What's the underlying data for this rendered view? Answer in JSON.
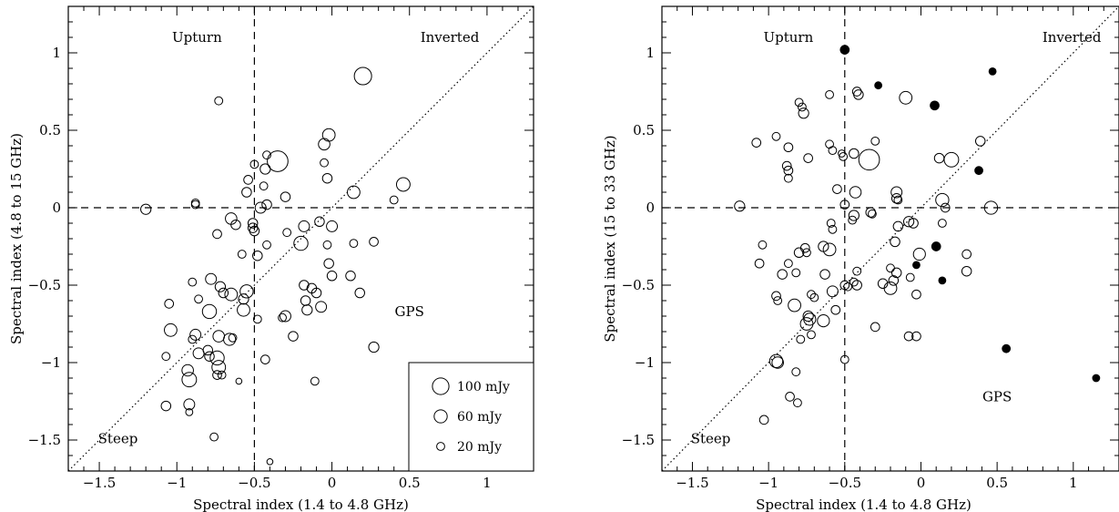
{
  "chart_data": [
    {
      "type": "scatter",
      "xlabel": "Spectral index (1.4 to 4.8 GHz)",
      "ylabel": "Spectral index (4.8 to 15 GHz)",
      "xlim": [
        -1.7,
        1.3
      ],
      "ylim": [
        -1.7,
        1.3
      ],
      "xticks": [
        -1.5,
        -1,
        -0.5,
        0,
        0.5,
        1
      ],
      "yticks": [
        -1.5,
        -1,
        -0.5,
        0,
        0.5,
        1
      ],
      "tick_labels": [
        "−1.5",
        "−1",
        "−0.5",
        "0",
        "0.5",
        "1"
      ],
      "dividers": {
        "x": -0.5,
        "y": 0
      },
      "diagonal": true,
      "regions": [
        "Upturn",
        "Inverted",
        "Steep",
        "GPS"
      ],
      "legend": {
        "placement": "bottom-right",
        "entries": [
          {
            "label": "100 mJy",
            "flux": 100
          },
          {
            "label": "60 mJy",
            "flux": 60
          },
          {
            "label": "20 mJy",
            "flux": 20
          }
        ]
      },
      "points": [
        {
          "x": 0.2,
          "y": 0.85,
          "flux": 110
        },
        {
          "x": -0.73,
          "y": 0.69,
          "flux": 20
        },
        {
          "x": -0.02,
          "y": 0.47,
          "flux": 55
        },
        {
          "x": -0.05,
          "y": 0.41,
          "flux": 45
        },
        {
          "x": -0.35,
          "y": 0.3,
          "flux": 160
        },
        {
          "x": -0.42,
          "y": 0.34,
          "flux": 20
        },
        {
          "x": -0.43,
          "y": 0.25,
          "flux": 35
        },
        {
          "x": -0.5,
          "y": 0.28,
          "flux": 20
        },
        {
          "x": -0.05,
          "y": 0.29,
          "flux": 20
        },
        {
          "x": -0.03,
          "y": 0.19,
          "flux": 30
        },
        {
          "x": 0.46,
          "y": 0.15,
          "flux": 65
        },
        {
          "x": 0.14,
          "y": 0.1,
          "flux": 55
        },
        {
          "x": -0.54,
          "y": 0.18,
          "flux": 25
        },
        {
          "x": -0.55,
          "y": 0.1,
          "flux": 30
        },
        {
          "x": -0.44,
          "y": 0.14,
          "flux": 20
        },
        {
          "x": -0.3,
          "y": 0.07,
          "flux": 30
        },
        {
          "x": -0.42,
          "y": 0.02,
          "flux": 30
        },
        {
          "x": -0.46,
          "y": 0.0,
          "flux": 40
        },
        {
          "x": 0.4,
          "y": 0.05,
          "flux": 20
        },
        {
          "x": -0.88,
          "y": 0.02,
          "flux": 20
        },
        {
          "x": -1.2,
          "y": -0.01,
          "flux": 35
        },
        {
          "x": -0.88,
          "y": 0.03,
          "flux": 20
        },
        {
          "x": -0.65,
          "y": -0.07,
          "flux": 45
        },
        {
          "x": -0.62,
          "y": -0.11,
          "flux": 30
        },
        {
          "x": -0.51,
          "y": -0.1,
          "flux": 30
        },
        {
          "x": -0.51,
          "y": -0.13,
          "flux": 30
        },
        {
          "x": -0.5,
          "y": -0.15,
          "flux": 30
        },
        {
          "x": -0.08,
          "y": -0.09,
          "flux": 30
        },
        {
          "x": 0.0,
          "y": -0.12,
          "flux": 40
        },
        {
          "x": -0.18,
          "y": -0.12,
          "flux": 40
        },
        {
          "x": -0.2,
          "y": -0.23,
          "flux": 70
        },
        {
          "x": -0.74,
          "y": -0.17,
          "flux": 25
        },
        {
          "x": -0.42,
          "y": -0.24,
          "flux": 20
        },
        {
          "x": -0.29,
          "y": -0.16,
          "flux": 20
        },
        {
          "x": -0.03,
          "y": -0.24,
          "flux": 20
        },
        {
          "x": 0.14,
          "y": -0.23,
          "flux": 20
        },
        {
          "x": 0.27,
          "y": -0.22,
          "flux": 25
        },
        {
          "x": -0.58,
          "y": -0.3,
          "flux": 20
        },
        {
          "x": -0.48,
          "y": -0.31,
          "flux": 30
        },
        {
          "x": -0.02,
          "y": -0.36,
          "flux": 30
        },
        {
          "x": 0.0,
          "y": -0.44,
          "flux": 30
        },
        {
          "x": 0.12,
          "y": -0.44,
          "flux": 30
        },
        {
          "x": -0.78,
          "y": -0.46,
          "flux": 40
        },
        {
          "x": -0.9,
          "y": -0.48,
          "flux": 20
        },
        {
          "x": -0.72,
          "y": -0.51,
          "flux": 35
        },
        {
          "x": -0.7,
          "y": -0.55,
          "flux": 30
        },
        {
          "x": -0.65,
          "y": -0.56,
          "flux": 55
        },
        {
          "x": -0.55,
          "y": -0.54,
          "flux": 60
        },
        {
          "x": -0.57,
          "y": -0.59,
          "flux": 35
        },
        {
          "x": -0.57,
          "y": -0.66,
          "flux": 55
        },
        {
          "x": -0.18,
          "y": -0.5,
          "flux": 30
        },
        {
          "x": -0.13,
          "y": -0.52,
          "flux": 30
        },
        {
          "x": -0.1,
          "y": -0.55,
          "flux": 30
        },
        {
          "x": 0.18,
          "y": -0.55,
          "flux": 30
        },
        {
          "x": -0.17,
          "y": -0.6,
          "flux": 30
        },
        {
          "x": -0.16,
          "y": -0.66,
          "flux": 35
        },
        {
          "x": -0.07,
          "y": -0.64,
          "flux": 40
        },
        {
          "x": -1.05,
          "y": -0.62,
          "flux": 25
        },
        {
          "x": -0.86,
          "y": -0.59,
          "flux": 20
        },
        {
          "x": -0.79,
          "y": -0.67,
          "flux": 70
        },
        {
          "x": -0.3,
          "y": -0.7,
          "flux": 40
        },
        {
          "x": -0.32,
          "y": -0.71,
          "flux": 20
        },
        {
          "x": -0.48,
          "y": -0.72,
          "flux": 20
        },
        {
          "x": -1.04,
          "y": -0.79,
          "flux": 55
        },
        {
          "x": -0.88,
          "y": -0.82,
          "flux": 40
        },
        {
          "x": -0.9,
          "y": -0.85,
          "flux": 20
        },
        {
          "x": -0.73,
          "y": -0.83,
          "flux": 45
        },
        {
          "x": -0.66,
          "y": -0.85,
          "flux": 50
        },
        {
          "x": -0.64,
          "y": -0.84,
          "flux": 20
        },
        {
          "x": -0.25,
          "y": -0.83,
          "flux": 30
        },
        {
          "x": -0.8,
          "y": -0.92,
          "flux": 30
        },
        {
          "x": -0.79,
          "y": -0.96,
          "flux": 30
        },
        {
          "x": -0.86,
          "y": -0.94,
          "flux": 40
        },
        {
          "x": -0.74,
          "y": -0.97,
          "flux": 70
        },
        {
          "x": -0.73,
          "y": -1.03,
          "flux": 65
        },
        {
          "x": -0.74,
          "y": -1.08,
          "flux": 25
        },
        {
          "x": -0.71,
          "y": -1.08,
          "flux": 20
        },
        {
          "x": 0.27,
          "y": -0.9,
          "flux": 35
        },
        {
          "x": -0.43,
          "y": -0.98,
          "flux": 25
        },
        {
          "x": -0.93,
          "y": -1.05,
          "flux": 45
        },
        {
          "x": -0.92,
          "y": -1.11,
          "flux": 75
        },
        {
          "x": -1.07,
          "y": -0.96,
          "flux": 20
        },
        {
          "x": -1.07,
          "y": -1.28,
          "flux": 30
        },
        {
          "x": -0.92,
          "y": -1.27,
          "flux": 40
        },
        {
          "x": -0.92,
          "y": -1.32,
          "flux": 15
        },
        {
          "x": -0.76,
          "y": -1.48,
          "flux": 20
        },
        {
          "x": -0.6,
          "y": -1.12,
          "flux": 10
        },
        {
          "x": -0.11,
          "y": -1.12,
          "flux": 20
        },
        {
          "x": -0.4,
          "y": -1.64,
          "flux": 10
        }
      ]
    },
    {
      "type": "scatter",
      "xlabel": "Spectral index (1.4 to 4.8 GHz)",
      "ylabel": "Spectral index (15 to 33 GHz)",
      "xlim": [
        -1.7,
        1.3
      ],
      "ylim": [
        -1.7,
        1.3
      ],
      "xticks": [
        -1.5,
        -1,
        -0.5,
        0,
        0.5,
        1
      ],
      "yticks": [
        -1.5,
        -1,
        -0.5,
        0,
        0.5,
        1
      ],
      "tick_labels": [
        "−1.5",
        "−1",
        "−0.5",
        "0",
        "0.5",
        "1"
      ],
      "dividers": {
        "x": -0.5,
        "y": 0
      },
      "diagonal": true,
      "regions": [
        "Upturn",
        "Inverted",
        "Steep",
        "GPS"
      ],
      "points": [
        {
          "x": -0.5,
          "y": 1.02,
          "flux": 25,
          "filled": true
        },
        {
          "x": 0.47,
          "y": 0.88,
          "flux": 15,
          "filled": true
        },
        {
          "x": -0.28,
          "y": 0.79,
          "flux": 15,
          "filled": true
        },
        {
          "x": -0.42,
          "y": 0.75,
          "flux": 25
        },
        {
          "x": -0.41,
          "y": 0.73,
          "flux": 30
        },
        {
          "x": -0.1,
          "y": 0.71,
          "flux": 55
        },
        {
          "x": 0.09,
          "y": 0.66,
          "flux": 25,
          "filled": true
        },
        {
          "x": -0.6,
          "y": 0.73,
          "flux": 20
        },
        {
          "x": -0.8,
          "y": 0.68,
          "flux": 20
        },
        {
          "x": -0.78,
          "y": 0.65,
          "flux": 20
        },
        {
          "x": -0.77,
          "y": 0.61,
          "flux": 35
        },
        {
          "x": -0.95,
          "y": 0.46,
          "flux": 20
        },
        {
          "x": -1.08,
          "y": 0.42,
          "flux": 25
        },
        {
          "x": -0.87,
          "y": 0.39,
          "flux": 25
        },
        {
          "x": -0.58,
          "y": 0.37,
          "flux": 20
        },
        {
          "x": -0.6,
          "y": 0.41,
          "flux": 20
        },
        {
          "x": -0.44,
          "y": 0.35,
          "flux": 30
        },
        {
          "x": -0.3,
          "y": 0.43,
          "flux": 20
        },
        {
          "x": -0.34,
          "y": 0.31,
          "flux": 160
        },
        {
          "x": -0.52,
          "y": 0.35,
          "flux": 15
        },
        {
          "x": -0.51,
          "y": 0.33,
          "flux": 20
        },
        {
          "x": 0.12,
          "y": 0.32,
          "flux": 30
        },
        {
          "x": 0.2,
          "y": 0.31,
          "flux": 75
        },
        {
          "x": 0.39,
          "y": 0.43,
          "flux": 30
        },
        {
          "x": 0.38,
          "y": 0.24,
          "flux": 20,
          "filled": true
        },
        {
          "x": -0.88,
          "y": 0.27,
          "flux": 25
        },
        {
          "x": -0.87,
          "y": 0.24,
          "flux": 25
        },
        {
          "x": -0.87,
          "y": 0.19,
          "flux": 20
        },
        {
          "x": -0.74,
          "y": 0.32,
          "flux": 25
        },
        {
          "x": -0.55,
          "y": 0.12,
          "flux": 25
        },
        {
          "x": -0.43,
          "y": 0.1,
          "flux": 45
        },
        {
          "x": -0.16,
          "y": 0.06,
          "flux": 30
        },
        {
          "x": -0.16,
          "y": 0.1,
          "flux": 40
        },
        {
          "x": -0.15,
          "y": 0.05,
          "flux": 20
        },
        {
          "x": 0.14,
          "y": 0.05,
          "flux": 60
        },
        {
          "x": -1.19,
          "y": 0.01,
          "flux": 35
        },
        {
          "x": -0.5,
          "y": 0.02,
          "flux": 25
        },
        {
          "x": -0.33,
          "y": -0.03,
          "flux": 30
        },
        {
          "x": -0.32,
          "y": -0.04,
          "flux": 20
        },
        {
          "x": -0.44,
          "y": -0.05,
          "flux": 35
        },
        {
          "x": -0.45,
          "y": -0.08,
          "flux": 20
        },
        {
          "x": -0.08,
          "y": -0.09,
          "flux": 35
        },
        {
          "x": -0.05,
          "y": -0.1,
          "flux": 30
        },
        {
          "x": 0.16,
          "y": 0.0,
          "flux": 25
        },
        {
          "x": 0.46,
          "y": 0.0,
          "flux": 60
        },
        {
          "x": -0.59,
          "y": -0.1,
          "flux": 20
        },
        {
          "x": -0.58,
          "y": -0.14,
          "flux": 20
        },
        {
          "x": -0.15,
          "y": -0.12,
          "flux": 30
        },
        {
          "x": 0.14,
          "y": -0.1,
          "flux": 20
        },
        {
          "x": -0.64,
          "y": -0.25,
          "flux": 35
        },
        {
          "x": -0.6,
          "y": -0.27,
          "flux": 55
        },
        {
          "x": -0.76,
          "y": -0.26,
          "flux": 25
        },
        {
          "x": -0.75,
          "y": -0.29,
          "flux": 20
        },
        {
          "x": -0.8,
          "y": -0.29,
          "flux": 30
        },
        {
          "x": -1.04,
          "y": -0.24,
          "flux": 20
        },
        {
          "x": -1.06,
          "y": -0.36,
          "flux": 25
        },
        {
          "x": -0.87,
          "y": -0.36,
          "flux": 20
        },
        {
          "x": -0.17,
          "y": -0.22,
          "flux": 30
        },
        {
          "x": 0.1,
          "y": -0.25,
          "flux": 25,
          "filled": true
        },
        {
          "x": -0.01,
          "y": -0.3,
          "flux": 50
        },
        {
          "x": 0.3,
          "y": -0.3,
          "flux": 25
        },
        {
          "x": -0.03,
          "y": -0.37,
          "flux": 15,
          "filled": true
        },
        {
          "x": -0.2,
          "y": -0.39,
          "flux": 20
        },
        {
          "x": -0.42,
          "y": -0.41,
          "flux": 20
        },
        {
          "x": -0.82,
          "y": -0.42,
          "flux": 20
        },
        {
          "x": -0.91,
          "y": -0.43,
          "flux": 30
        },
        {
          "x": -0.63,
          "y": -0.43,
          "flux": 30
        },
        {
          "x": -0.16,
          "y": -0.42,
          "flux": 30
        },
        {
          "x": 0.3,
          "y": -0.41,
          "flux": 30
        },
        {
          "x": -0.07,
          "y": -0.45,
          "flux": 20
        },
        {
          "x": -0.18,
          "y": -0.47,
          "flux": 30
        },
        {
          "x": 0.14,
          "y": -0.47,
          "flux": 15,
          "filled": true
        },
        {
          "x": -0.42,
          "y": -0.5,
          "flux": 30
        },
        {
          "x": -0.44,
          "y": -0.48,
          "flux": 20
        },
        {
          "x": -0.5,
          "y": -0.5,
          "flux": 25
        },
        {
          "x": -0.48,
          "y": -0.51,
          "flux": 20
        },
        {
          "x": -0.2,
          "y": -0.52,
          "flux": 55
        },
        {
          "x": -0.25,
          "y": -0.49,
          "flux": 30
        },
        {
          "x": -0.58,
          "y": -0.54,
          "flux": 40
        },
        {
          "x": -0.72,
          "y": -0.56,
          "flux": 20
        },
        {
          "x": -0.7,
          "y": -0.58,
          "flux": 20
        },
        {
          "x": -0.03,
          "y": -0.56,
          "flux": 25
        },
        {
          "x": -0.95,
          "y": -0.57,
          "flux": 25
        },
        {
          "x": -0.94,
          "y": -0.6,
          "flux": 20
        },
        {
          "x": -0.83,
          "y": -0.63,
          "flux": 55
        },
        {
          "x": -0.56,
          "y": -0.66,
          "flux": 25
        },
        {
          "x": -0.74,
          "y": -0.7,
          "flux": 35
        },
        {
          "x": -0.73,
          "y": -0.72,
          "flux": 50
        },
        {
          "x": -0.64,
          "y": -0.73,
          "flux": 50
        },
        {
          "x": -0.75,
          "y": -0.75,
          "flux": 55
        },
        {
          "x": -0.3,
          "y": -0.77,
          "flux": 25
        },
        {
          "x": -0.72,
          "y": -0.82,
          "flux": 20
        },
        {
          "x": -0.79,
          "y": -0.85,
          "flux": 20
        },
        {
          "x": -0.08,
          "y": -0.83,
          "flux": 25
        },
        {
          "x": -0.03,
          "y": -0.83,
          "flux": 25
        },
        {
          "x": 0.56,
          "y": -0.91,
          "flux": 20,
          "filled": true
        },
        {
          "x": -0.5,
          "y": -0.98,
          "flux": 20
        },
        {
          "x": -0.95,
          "y": -0.99,
          "flux": 60
        },
        {
          "x": -0.94,
          "y": -1.0,
          "flux": 45
        },
        {
          "x": -0.82,
          "y": -1.06,
          "flux": 20
        },
        {
          "x": 1.15,
          "y": -1.1,
          "flux": 15,
          "filled": true
        },
        {
          "x": -0.86,
          "y": -1.22,
          "flux": 25
        },
        {
          "x": -0.81,
          "y": -1.26,
          "flux": 20
        },
        {
          "x": -1.03,
          "y": -1.37,
          "flux": 25
        }
      ]
    }
  ]
}
